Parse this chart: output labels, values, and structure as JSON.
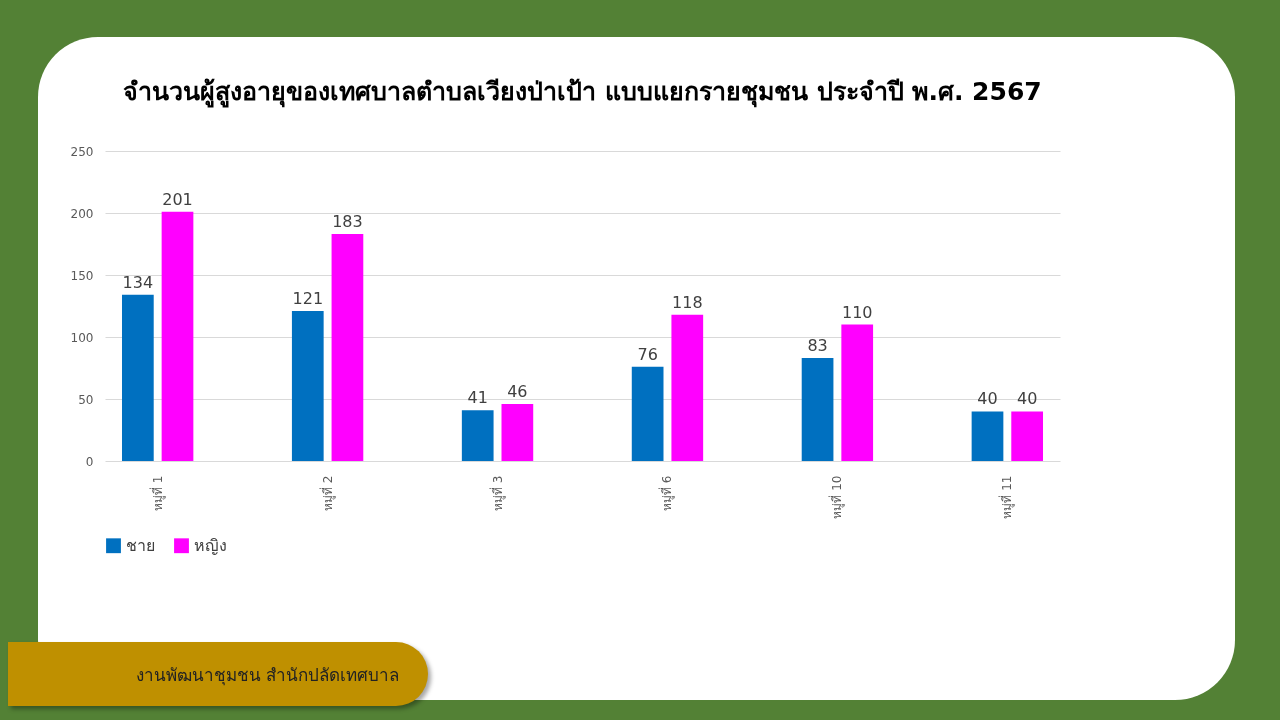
{
  "chart_data": {
    "type": "bar",
    "title": "จำนวนผู้สูงอายุของเทศบาลตำบลเวียงป่าเป้า แบบแยกรายชุมชน ประจำปี พ.ศ. 2567",
    "categories": [
      "หมู่ที่ 1",
      "หมู่ที่ 2",
      "หมู่ที่ 3",
      "หมู่ที่ 6",
      "หมู่ที่ 10",
      "หมู่ที่ 11"
    ],
    "series": [
      {
        "name": "ชาย",
        "color": "#0070c0",
        "values": [
          134,
          121,
          41,
          76,
          83,
          40
        ]
      },
      {
        "name": "หญิง",
        "color": "#ff00ff",
        "values": [
          201,
          183,
          46,
          118,
          110,
          40
        ]
      }
    ],
    "ylim": [
      0,
      250
    ],
    "yticks": [
      0,
      50,
      100,
      150,
      200,
      250
    ],
    "grid": "y",
    "legend": "bottom",
    "data_labels": true,
    "annotations": [
      "งานพัฒนาชุมชน  สำนักปลัดเทศบาล"
    ]
  }
}
